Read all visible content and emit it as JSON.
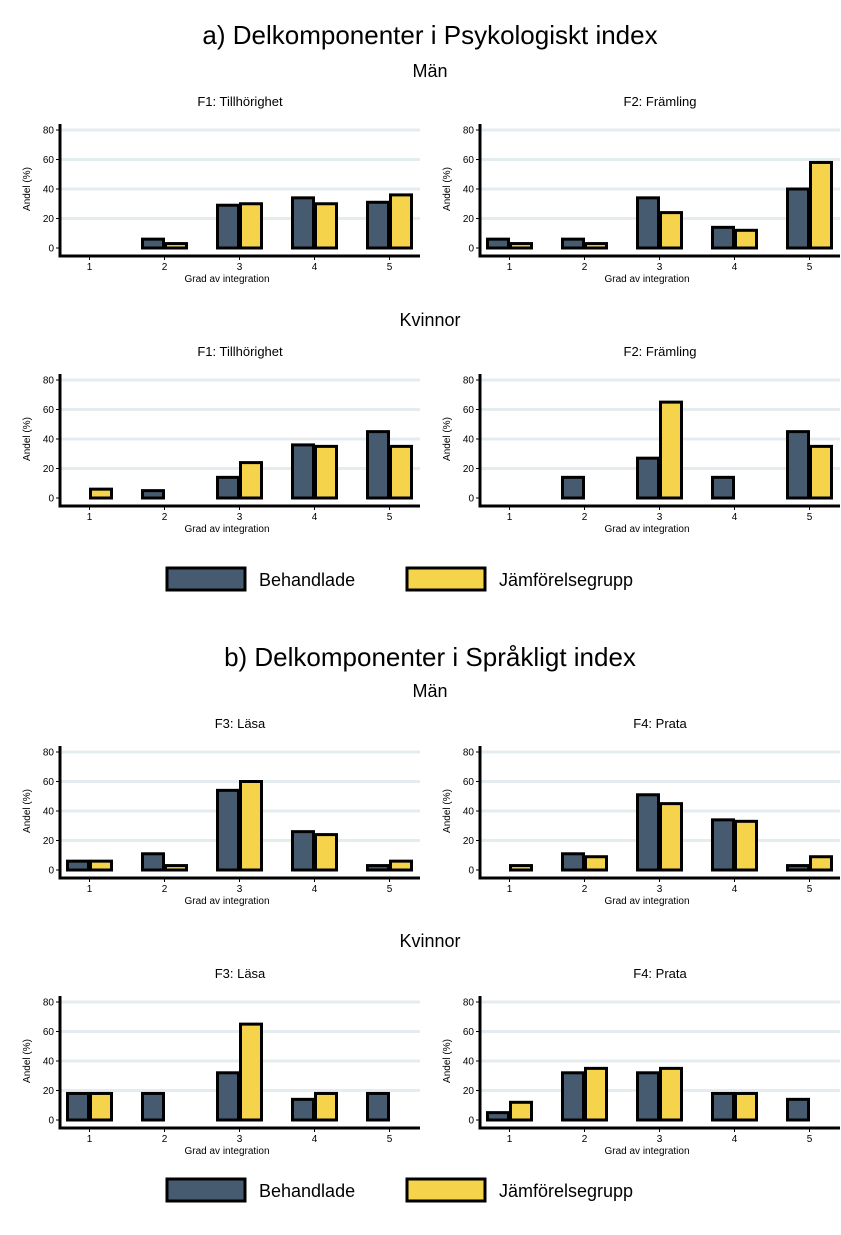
{
  "colors": {
    "behandlade": "#465B70",
    "jamforelse": "#F5D44B",
    "outline": "#000000",
    "grid": "#E5ECEF"
  },
  "x_categories": [
    "1",
    "2",
    "3",
    "4",
    "5"
  ],
  "y_ticks": [
    "0",
    "20",
    "40",
    "60",
    "80"
  ],
  "legend": {
    "behandlade_label": "Behandlade",
    "jamforelse_label": "Jämförelsegrupp"
  },
  "sections": [
    {
      "title": "a) Delkomponenter i Psykologiskt index",
      "groups": [
        {
          "title": "Män"
        },
        {
          "title": "Kvinnor"
        }
      ]
    },
    {
      "title": "b) Delkomponenter i Språkligt index",
      "groups": [
        {
          "title": "Män"
        },
        {
          "title": "Kvinnor"
        }
      ]
    }
  ],
  "chart_data": [
    {
      "type": "bar",
      "title": "F1: Tillhörighet",
      "section": "a) Delkomponenter i Psykologiskt index",
      "group": "Män",
      "xlabel": "Grad av integration",
      "ylabel": "Andel (%)",
      "ylim": [
        0,
        85
      ],
      "categories": [
        "1",
        "2",
        "3",
        "4",
        "5"
      ],
      "series": [
        {
          "name": "Behandlade",
          "values": [
            0,
            6,
            29,
            34,
            31
          ]
        },
        {
          "name": "Jämförelsegrupp",
          "values": [
            0,
            3,
            30,
            30,
            36
          ]
        }
      ]
    },
    {
      "type": "bar",
      "title": "F2: Främling",
      "section": "a) Delkomponenter i Psykologiskt index",
      "group": "Män",
      "xlabel": "Grad av integration",
      "ylabel": "Andel (%)",
      "ylim": [
        0,
        85
      ],
      "categories": [
        "1",
        "2",
        "3",
        "4",
        "5"
      ],
      "series": [
        {
          "name": "Behandlade",
          "values": [
            6,
            6,
            34,
            14,
            40
          ]
        },
        {
          "name": "Jämförelsegrupp",
          "values": [
            3,
            3,
            24,
            12,
            58
          ]
        }
      ]
    },
    {
      "type": "bar",
      "title": "F1: Tillhörighet",
      "section": "a) Delkomponenter i Psykologiskt index",
      "group": "Kvinnor",
      "xlabel": "Grad av integration",
      "ylabel": "Andel (%)",
      "ylim": [
        0,
        85
      ],
      "categories": [
        "1",
        "2",
        "3",
        "4",
        "5"
      ],
      "series": [
        {
          "name": "Behandlade",
          "values": [
            0,
            5,
            14,
            36,
            45
          ]
        },
        {
          "name": "Jämförelsegrupp",
          "values": [
            6,
            0,
            24,
            35,
            35
          ]
        }
      ]
    },
    {
      "type": "bar",
      "title": "F2: Främling",
      "section": "a) Delkomponenter i Psykologiskt index",
      "group": "Kvinnor",
      "xlabel": "Grad av integration",
      "ylabel": "Andel (%)",
      "ylim": [
        0,
        85
      ],
      "categories": [
        "1",
        "2",
        "3",
        "4",
        "5"
      ],
      "series": [
        {
          "name": "Behandlade",
          "values": [
            0,
            14,
            27,
            14,
            45
          ]
        },
        {
          "name": "Jämförelsegrupp",
          "values": [
            0,
            0,
            65,
            0,
            35
          ]
        }
      ]
    },
    {
      "type": "bar",
      "title": "F3: Läsa",
      "section": "b) Delkomponenter i Språkligt index",
      "group": "Män",
      "xlabel": "Grad av integration",
      "ylabel": "Andel (%)",
      "ylim": [
        0,
        85
      ],
      "categories": [
        "1",
        "2",
        "3",
        "4",
        "5"
      ],
      "series": [
        {
          "name": "Behandlade",
          "values": [
            6,
            11,
            54,
            26,
            3
          ]
        },
        {
          "name": "Jämförelsegrupp",
          "values": [
            6,
            3,
            60,
            24,
            6
          ]
        }
      ]
    },
    {
      "type": "bar",
      "title": "F4: Prata",
      "section": "b) Delkomponenter i Språkligt index",
      "group": "Män",
      "xlabel": "Grad av integration",
      "ylabel": "Andel (%)",
      "ylim": [
        0,
        85
      ],
      "categories": [
        "1",
        "2",
        "3",
        "4",
        "5"
      ],
      "series": [
        {
          "name": "Behandlade",
          "values": [
            0,
            11,
            51,
            34,
            3
          ]
        },
        {
          "name": "Jämförelsegrupp",
          "values": [
            3,
            9,
            45,
            33,
            9
          ]
        }
      ]
    },
    {
      "type": "bar",
      "title": "F3: Läsa",
      "section": "b) Delkomponenter i Språkligt index",
      "group": "Kvinnor",
      "xlabel": "Grad av integration",
      "ylabel": "Andel (%)",
      "ylim": [
        0,
        85
      ],
      "categories": [
        "1",
        "2",
        "3",
        "4",
        "5"
      ],
      "series": [
        {
          "name": "Behandlade",
          "values": [
            18,
            18,
            32,
            14,
            18
          ]
        },
        {
          "name": "Jämförelsegrupp",
          "values": [
            18,
            0,
            65,
            18,
            0
          ]
        }
      ]
    },
    {
      "type": "bar",
      "title": "F4: Prata",
      "section": "b) Delkomponenter i Språkligt index",
      "group": "Kvinnor",
      "xlabel": "Grad av integration",
      "ylabel": "Andel (%)",
      "ylim": [
        0,
        85
      ],
      "categories": [
        "1",
        "2",
        "3",
        "4",
        "5"
      ],
      "series": [
        {
          "name": "Behandlade",
          "values": [
            5,
            32,
            32,
            18,
            14
          ]
        },
        {
          "name": "Jämförelsegrupp",
          "values": [
            12,
            35,
            35,
            18,
            0
          ]
        }
      ]
    }
  ]
}
